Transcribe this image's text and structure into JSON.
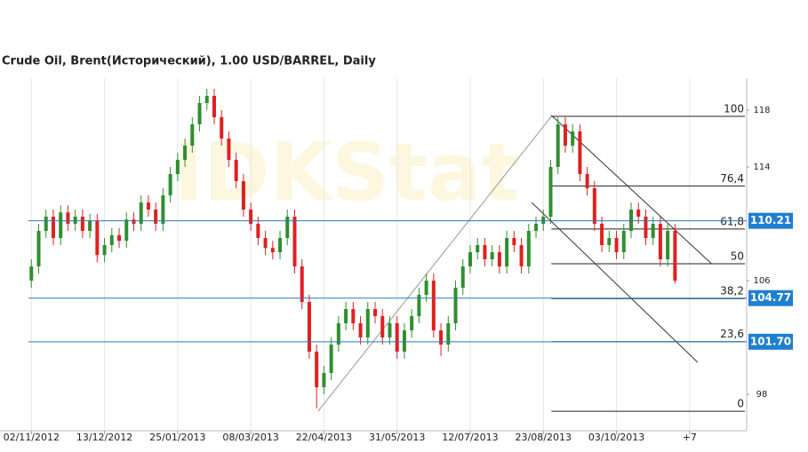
{
  "chart_data": {
    "type": "candlestick",
    "title": "Crude Oil, Brent(Исторический), 1.00 USD/BARREL, Daily",
    "watermark": "IDKStat",
    "up_color": "#2f8f2f",
    "down_color": "#e02020",
    "open": [
      106.0,
      107.0,
      109.5,
      110.5,
      109.0,
      110.8,
      110.0,
      110.5,
      109.5,
      110.2,
      107.8,
      108.5,
      109.2,
      108.8,
      110.3,
      110.0,
      111.5,
      111.0,
      110.0,
      112.0,
      113.5,
      114.5,
      115.5,
      117.0,
      118.5,
      119.0,
      117.5,
      116.0,
      114.5,
      113.0,
      111.0,
      110.0,
      109.0,
      108.3,
      108.0,
      109.0,
      110.5,
      107.0,
      104.5,
      101.0,
      98.5,
      99.5,
      101.5,
      103.0,
      104.0,
      103.0,
      102.0,
      104.0,
      103.5,
      102.0,
      103.0,
      101.0,
      102.5,
      103.5,
      105.0,
      106.0,
      102.5,
      101.5,
      103.0,
      105.5,
      107.0,
      108.0,
      108.5,
      107.5,
      108.0,
      107.0,
      109.0,
      108.5,
      107.0,
      109.5,
      110.0,
      110.5,
      114.0,
      117.0,
      115.5,
      116.5,
      113.5,
      112.5,
      110.0,
      108.5,
      109.0,
      108.0,
      109.5,
      111.0,
      110.5,
      109.0,
      110.0,
      107.5,
      109.5
    ],
    "high": [
      107.5,
      110.0,
      111.0,
      111.0,
      111.3,
      111.3,
      111.0,
      111.0,
      110.7,
      110.7,
      109.0,
      109.7,
      109.7,
      110.8,
      110.8,
      112.0,
      112.0,
      111.5,
      112.5,
      114.0,
      115.0,
      116.0,
      117.5,
      119.0,
      119.5,
      119.5,
      118.0,
      116.5,
      115.0,
      113.5,
      111.5,
      110.5,
      109.5,
      108.8,
      109.5,
      111.0,
      111.0,
      107.5,
      105.0,
      101.5,
      100.0,
      102.0,
      103.5,
      104.5,
      104.5,
      103.5,
      104.5,
      104.5,
      104.0,
      103.5,
      103.5,
      103.0,
      104.0,
      105.5,
      106.5,
      106.5,
      103.0,
      103.5,
      106.0,
      107.5,
      108.5,
      109.0,
      109.0,
      108.5,
      108.5,
      109.5,
      109.5,
      109.0,
      110.0,
      110.5,
      111.0,
      114.5,
      117.5,
      117.5,
      117.0,
      117.0,
      114.0,
      113.0,
      110.5,
      109.5,
      109.5,
      110.0,
      111.5,
      111.5,
      111.0,
      110.5,
      110.5,
      110.0,
      110.0
    ],
    "low": [
      105.5,
      106.5,
      109.0,
      108.5,
      108.5,
      109.5,
      109.5,
      109.0,
      109.0,
      107.3,
      107.3,
      108.0,
      108.3,
      108.3,
      109.5,
      109.5,
      110.5,
      109.5,
      109.5,
      111.5,
      113.0,
      114.0,
      115.0,
      116.5,
      118.0,
      117.0,
      115.5,
      114.0,
      112.5,
      110.5,
      109.5,
      108.5,
      107.8,
      107.5,
      107.5,
      108.5,
      106.5,
      104.0,
      100.5,
      97.0,
      98.0,
      99.0,
      101.0,
      102.5,
      102.5,
      101.5,
      101.5,
      103.0,
      101.5,
      101.5,
      100.5,
      100.5,
      102.0,
      103.0,
      104.5,
      102.0,
      100.7,
      101.0,
      102.5,
      105.0,
      106.5,
      107.5,
      107.0,
      107.0,
      106.5,
      106.5,
      108.0,
      106.5,
      106.5,
      109.0,
      109.5,
      110.0,
      113.5,
      115.0,
      115.0,
      113.0,
      112.0,
      109.5,
      108.0,
      108.0,
      107.5,
      107.5,
      109.0,
      110.0,
      108.5,
      108.5,
      107.0,
      107.0,
      105.8
    ],
    "close": [
      107.0,
      109.5,
      110.5,
      109.0,
      110.8,
      110.0,
      110.5,
      109.5,
      110.2,
      107.8,
      108.5,
      109.2,
      108.8,
      110.3,
      110.0,
      111.5,
      111.0,
      110.0,
      112.0,
      113.5,
      114.5,
      115.5,
      117.0,
      118.5,
      119.0,
      117.5,
      116.0,
      114.5,
      113.0,
      111.0,
      110.0,
      109.0,
      108.3,
      108.0,
      109.0,
      110.5,
      107.0,
      104.5,
      101.0,
      98.5,
      99.5,
      101.5,
      103.0,
      104.0,
      103.0,
      102.0,
      104.0,
      103.5,
      102.0,
      103.0,
      101.0,
      102.5,
      103.5,
      105.0,
      106.0,
      102.5,
      101.5,
      103.0,
      105.5,
      107.0,
      108.0,
      108.5,
      107.5,
      108.0,
      107.0,
      109.0,
      108.5,
      107.0,
      109.5,
      110.0,
      110.5,
      114.0,
      117.0,
      115.5,
      116.5,
      113.5,
      112.5,
      110.0,
      108.5,
      109.0,
      108.0,
      109.5,
      111.0,
      110.5,
      109.0,
      110.0,
      107.5,
      109.5,
      106.0
    ],
    "xlim": [
      -0.4,
      97.8
    ],
    "ylim": [
      95.44,
      120.25
    ],
    "yticks": [
      98,
      106,
      114,
      118
    ],
    "xticks": [
      {
        "value": 0,
        "label": "02/11/2012"
      },
      {
        "value": 10,
        "label": "13/12/2012"
      },
      {
        "value": 20,
        "label": "25/01/2013"
      },
      {
        "value": 30,
        "label": "08/03/2013"
      },
      {
        "value": 40,
        "label": "22/04/2013"
      },
      {
        "value": 50,
        "label": "31/05/2013"
      },
      {
        "value": 60,
        "label": "12/07/2013"
      },
      {
        "value": 70,
        "label": "23/08/2013"
      },
      {
        "value": 80,
        "label": "03/10/2013"
      },
      {
        "value": 90,
        "label": "+7"
      }
    ],
    "grid": true,
    "hlines": [
      {
        "value": 110.21,
        "label": "110.21"
      },
      {
        "value": 104.77,
        "label": "104.77"
      },
      {
        "value": 101.7,
        "label": "101.70"
      }
    ],
    "hline_color": "#2a7ab8",
    "fib": {
      "start": 39.2,
      "end": 71.1,
      "low": 96.81,
      "high": 117.56,
      "levels": [
        100,
        {
          "value": 76.4,
          "label": "76,4"
        },
        {
          "value": 61.8,
          "label": "61,8"
        },
        50,
        {
          "value": 38.2,
          "label": "38,2"
        },
        {
          "value": 23.6,
          "label": "23,6"
        },
        0
      ]
    },
    "trendlines": [
      {
        "x": [
          71.1,
          93.0
        ],
        "y": [
          117.63,
          107.19
        ]
      },
      {
        "x": [
          68.4,
          91.1
        ],
        "y": [
          111.5,
          100.25
        ]
      }
    ]
  }
}
